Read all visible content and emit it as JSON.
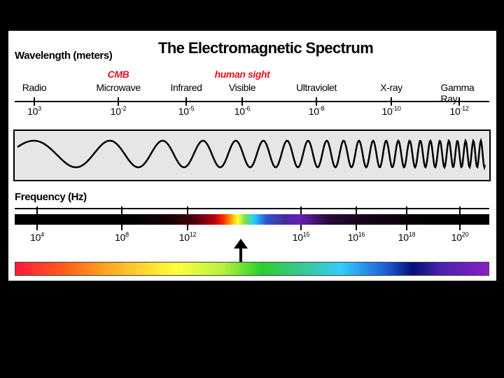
{
  "title": "The Electromagnetic Spectrum",
  "wavelength_heading": "Wavelength (meters)",
  "frequency_heading": "Frequency (Hz)",
  "bands": [
    {
      "label": "Radio"
    },
    {
      "label": "Microwave",
      "note": "CMB"
    },
    {
      "label": "Infrared"
    },
    {
      "label": "Visible",
      "note": "human sight"
    },
    {
      "label": "Ultraviolet"
    },
    {
      "label": "X-ray"
    },
    {
      "label": "Gamma Ray"
    }
  ],
  "wavelength_ticks": [
    {
      "base": "10",
      "exp": "3"
    },
    {
      "base": "10",
      "exp": "-2"
    },
    {
      "base": "10",
      "exp": "-5"
    },
    {
      "base": "10",
      "exp": "-6"
    },
    {
      "base": "10",
      "exp": "-8"
    },
    {
      "base": "10",
      "exp": "-10"
    },
    {
      "base": "10",
      "exp": "-12"
    }
  ],
  "frequency_ticks": [
    {
      "base": "10",
      "exp": "4"
    },
    {
      "base": "10",
      "exp": "8"
    },
    {
      "base": "10",
      "exp": "12"
    },
    {
      "base": "10",
      "exp": "15"
    },
    {
      "base": "10",
      "exp": "16"
    },
    {
      "base": "10",
      "exp": "18"
    },
    {
      "base": "10",
      "exp": "20"
    }
  ],
  "colors": {
    "background": "#000000",
    "panel": "#ffffff",
    "note_red": "#e8101c",
    "wave_box": "#e6e6e6"
  },
  "icons": {
    "visible_pointer": "up-arrow-icon"
  }
}
